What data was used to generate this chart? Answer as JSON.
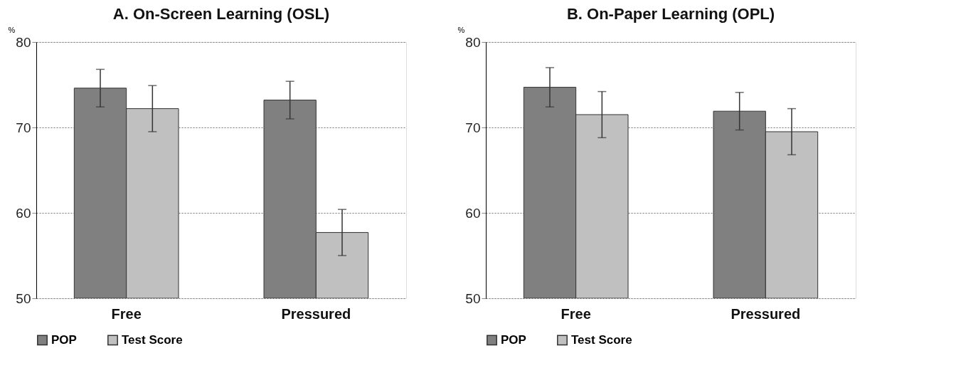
{
  "chart_data": [
    {
      "type": "bar",
      "title": "A. On-Screen Learning (OSL)",
      "ylabel": "%",
      "categories": [
        "Free",
        "Pressured"
      ],
      "ylim": [
        50,
        80
      ],
      "yticks": [
        50,
        60,
        70,
        80
      ],
      "grid": "y",
      "legend": "bottom",
      "series": [
        {
          "name": "POP",
          "color": "#808080",
          "values": [
            74.6,
            73.2
          ],
          "errors": [
            2.2,
            2.2
          ]
        },
        {
          "name": "Test Score",
          "color": "#c0c0c0",
          "values": [
            72.2,
            57.7
          ],
          "errors": [
            2.7,
            2.7
          ]
        }
      ]
    },
    {
      "type": "bar",
      "title": "B. On-Paper Learning (OPL)",
      "ylabel": "%",
      "categories": [
        "Free",
        "Pressured"
      ],
      "ylim": [
        50,
        80
      ],
      "yticks": [
        50,
        60,
        70,
        80
      ],
      "grid": "y",
      "legend": "bottom",
      "series": [
        {
          "name": "POP",
          "color": "#808080",
          "values": [
            74.7,
            71.9
          ],
          "errors": [
            2.3,
            2.2
          ]
        },
        {
          "name": "Test Score",
          "color": "#c0c0c0",
          "values": [
            71.5,
            69.5
          ],
          "errors": [
            2.7,
            2.7
          ]
        }
      ]
    }
  ]
}
